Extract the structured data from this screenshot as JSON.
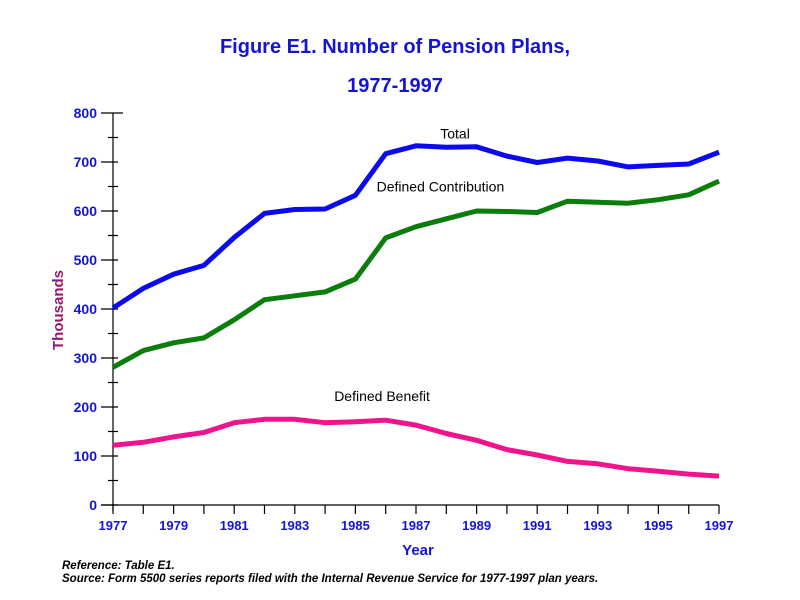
{
  "chart_data": {
    "type": "line",
    "title": "Figure E1. Number of Pension Plans,",
    "subtitle": "1977-1997",
    "xlabel": "Year",
    "ylabel": "Thousands",
    "xlim": [
      1977,
      1997
    ],
    "ylim": [
      0,
      800
    ],
    "x_tick_labels": [
      "1977",
      "1979",
      "1981",
      "1983",
      "1985",
      "1987",
      "1989",
      "1991",
      "1993",
      "1995",
      "1997"
    ],
    "y_tick_labels": [
      "0",
      "100",
      "200",
      "300",
      "400",
      "500",
      "600",
      "700",
      "800"
    ],
    "x": [
      1977,
      1978,
      1979,
      1980,
      1981,
      1982,
      1983,
      1984,
      1985,
      1986,
      1987,
      1988,
      1989,
      1990,
      1991,
      1992,
      1993,
      1994,
      1995,
      1996,
      1997
    ],
    "series": [
      {
        "name": "Total",
        "color": "#0a0aeb",
        "values": [
          402,
          442,
          471,
          489,
          546,
          595,
          603,
          604,
          632,
          717,
          733,
          730,
          731,
          712,
          699,
          708,
          702,
          690,
          693,
          696,
          720
        ]
      },
      {
        "name": "Defined Contribution",
        "color": "#0a7d0a",
        "values": [
          281,
          315,
          331,
          341,
          378,
          419,
          427,
          435,
          461,
          545,
          568,
          584,
          600,
          599,
          597,
          620,
          618,
          616,
          623,
          633,
          661
        ]
      },
      {
        "name": "Defined Benefit",
        "color": "#f0148c",
        "values": [
          122,
          128,
          139,
          148,
          168,
          175,
          175,
          168,
          170,
          173,
          163,
          146,
          132,
          113,
          102,
          89,
          84,
          74,
          69,
          63,
          59
        ]
      }
    ],
    "legend": "inline labels",
    "grid": false
  },
  "notes": {
    "reference": "Reference: Table E1.",
    "source": "Source: Form 5500 series reports filed with the Internal Revenue Service for 1977-1997 plan years."
  },
  "colors": {
    "title": "#1414d2",
    "tick_label": "#1414d2",
    "axis": "#000000"
  }
}
